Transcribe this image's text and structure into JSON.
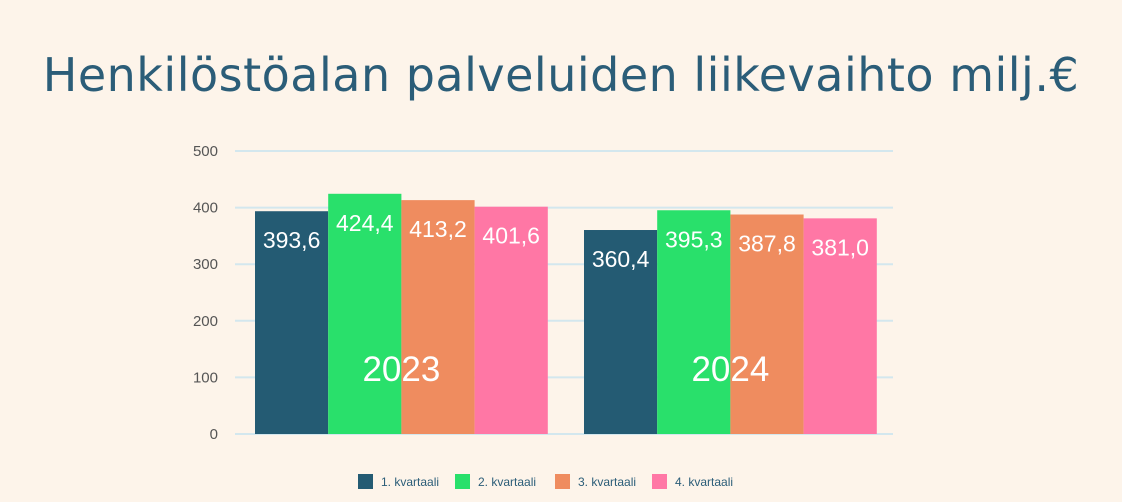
{
  "chart_data": {
    "type": "bar",
    "title": "Henkilöstöalan palveluiden liikevaihto milj.€",
    "categories": [
      "2023",
      "2024"
    ],
    "series": [
      {
        "name": "1. kvartaali",
        "color": "#245b73",
        "values": [
          393.6,
          360.4
        ],
        "labels": [
          "393,6",
          "360,4"
        ]
      },
      {
        "name": "2. kvartaali",
        "color": "#29e06b",
        "values": [
          424.4,
          395.3
        ],
        "labels": [
          "424,4",
          "395,3"
        ]
      },
      {
        "name": "3. kvartaali",
        "color": "#ef8c5f",
        "values": [
          413.2,
          387.8
        ],
        "labels": [
          "413,2",
          "387,8"
        ]
      },
      {
        "name": "4. kvartaali",
        "color": "#ff77a5",
        "values": [
          401.6,
          381.0
        ],
        "labels": [
          "401,6",
          "381,0"
        ]
      }
    ],
    "ylim": [
      0,
      500
    ],
    "yticks": [
      0,
      100,
      200,
      300,
      400,
      500
    ],
    "grid": true,
    "legend": "bottom"
  }
}
